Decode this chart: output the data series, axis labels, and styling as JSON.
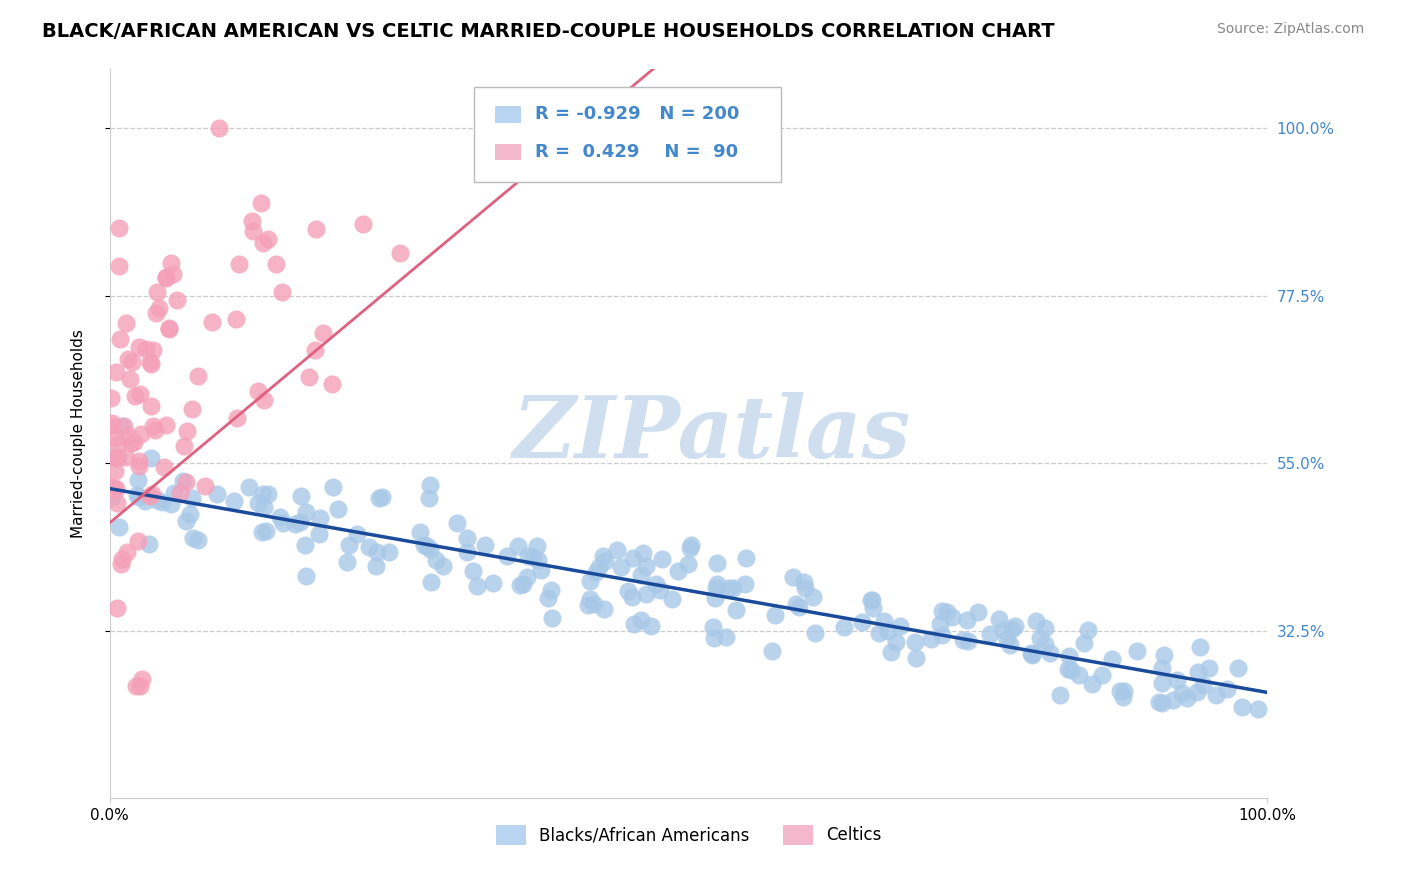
{
  "title": "BLACK/AFRICAN AMERICAN VS CELTIC MARRIED-COUPLE HOUSEHOLDS CORRELATION CHART",
  "source": "Source: ZipAtlas.com",
  "ylabel": "Married-couple Households",
  "blue_R": -0.929,
  "blue_N": 200,
  "pink_R": 0.429,
  "pink_N": 90,
  "xlim": [
    0.0,
    1.0
  ],
  "ylim": [
    0.1,
    1.08
  ],
  "yticks": [
    0.325,
    0.55,
    0.775,
    1.0
  ],
  "ytick_labels": [
    "32.5%",
    "55.0%",
    "77.5%",
    "100.0%"
  ],
  "xtick_labels": [
    "0.0%",
    "100.0%"
  ],
  "blue_color": "#a8c8e8",
  "blue_line_color": "#1a4a9a",
  "pink_color": "#f4a0b8",
  "pink_line_color": "#e06080",
  "legend_blue_fill": "#b8d4f0",
  "legend_pink_fill": "#f4b8cc",
  "watermark": "ZIPatlas",
  "watermark_color": "#d0dff0",
  "title_fontsize": 14,
  "label_fontsize": 11,
  "tick_fontsize": 11,
  "source_fontsize": 10,
  "legend_label_blue": "Blacks/African Americans",
  "legend_label_pink": "Celtics",
  "background_color": "#ffffff",
  "grid_color": "#cccccc",
  "right_tick_color": "#4488cc",
  "legend_r_color": "#4488cc"
}
